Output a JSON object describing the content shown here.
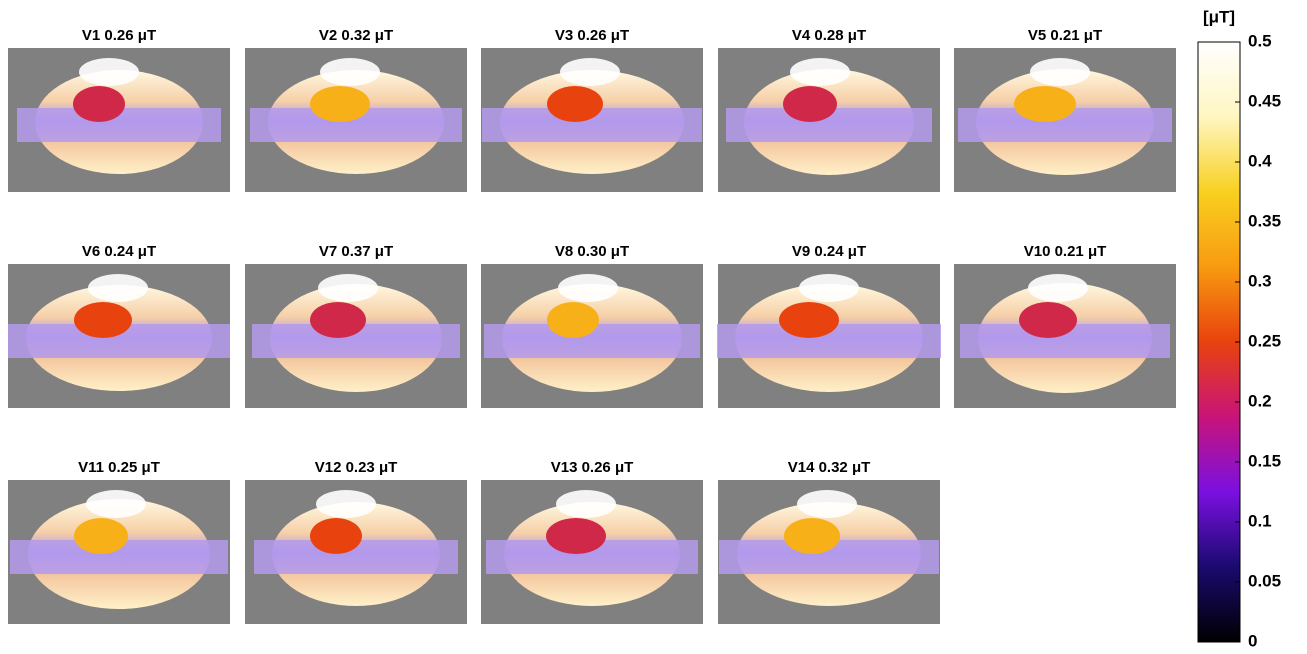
{
  "chart_data": {
    "type": "image-grid",
    "panels": [
      "V1 0.26 μT",
      "V2 0.32 μT",
      "V3 0.26 μT",
      "V4 0.28 μT",
      "V5 0.21 μT",
      "V6 0.24 μT",
      "V7 0.37 μT",
      "V8 0.30 μT",
      "V9 0.24 μT",
      "V10 0.21 μT",
      "V11 0.25 μT",
      "V12 0.23 μT",
      "V13 0.26 μT",
      "V14 0.32 μT"
    ],
    "colorbar_label": "[μT]",
    "clim": [
      0,
      0.5
    ],
    "cticks": [
      0,
      0.05,
      0.1,
      0.15,
      0.2,
      0.25,
      0.3,
      0.35,
      0.4,
      0.45,
      0.5
    ],
    "colormap": [
      "#000000",
      "#1a0a6e",
      "#7a10e0",
      "#c81478",
      "#e8420e",
      "#f89a10",
      "#f8d020",
      "#fff6c0",
      "#ffffff"
    ],
    "background": "#808080"
  }
}
